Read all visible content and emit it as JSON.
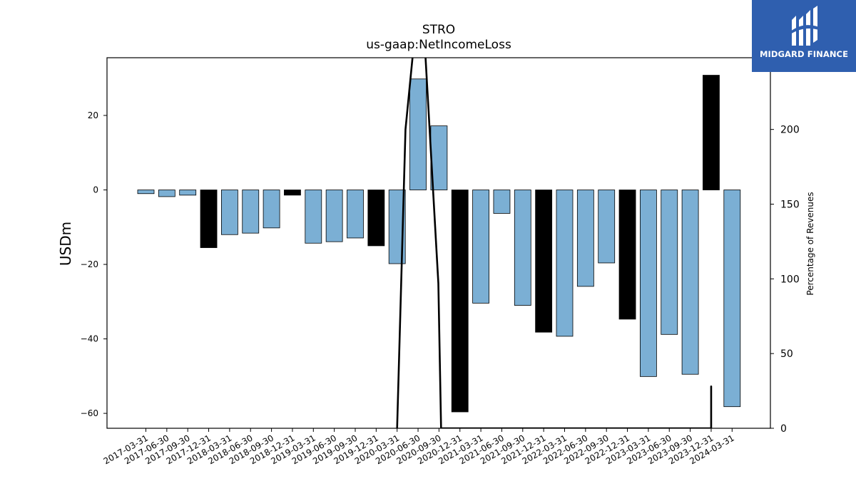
{
  "chart_data": {
    "type": "bar",
    "title": "STRO",
    "subtitle": "us-gaap:NetIncomeLoss",
    "ylabel": "USDm",
    "y2label": "Percentage of Revenues",
    "ylim": [
      -64,
      35.5
    ],
    "y2lim": [
      0,
      248
    ],
    "yticks": [
      -60,
      -40,
      -20,
      0,
      20
    ],
    "y2ticks": [
      0,
      50,
      100,
      150,
      200
    ],
    "categories": [
      "2017-03-31",
      "2017-06-30",
      "2017-09-30",
      "2017-12-31",
      "2018-03-31",
      "2018-06-30",
      "2018-09-30",
      "2018-12-31",
      "2019-03-31",
      "2019-06-30",
      "2019-09-30",
      "2019-12-31",
      "2020-03-31",
      "2020-06-30",
      "2020-09-30",
      "2020-12-31",
      "2021-03-31",
      "2021-06-30",
      "2021-09-30",
      "2021-12-31",
      "2022-03-31",
      "2022-06-30",
      "2022-09-30",
      "2022-12-31",
      "2023-03-31",
      "2023-06-30",
      "2023-09-30",
      "2023-12-31",
      "2024-03-31"
    ],
    "values": [
      -1.0,
      -1.8,
      -1.4,
      -15.5,
      -12.0,
      -11.6,
      -10.2,
      -1.4,
      -14.3,
      -13.9,
      -12.9,
      -15.0,
      -19.8,
      29.8,
      17.2,
      -59.6,
      -30.4,
      -6.3,
      -31.0,
      -38.2,
      -39.3,
      -25.9,
      -19.6,
      -34.7,
      -50.1,
      -38.8,
      -49.5,
      30.8,
      -58.2
    ],
    "quarter_type": [
      "Q",
      "Q",
      "Q",
      "FY",
      "Q",
      "Q",
      "Q",
      "FY",
      "Q",
      "Q",
      "Q",
      "FY",
      "Q",
      "Q",
      "Q",
      "FY",
      "Q",
      "Q",
      "Q",
      "FY",
      "Q",
      "Q",
      "Q",
      "FY",
      "Q",
      "Q",
      "Q",
      "FY",
      "Q"
    ],
    "colors": {
      "Q": "#7bafd4",
      "FY": "#000000",
      "line": "#000000"
    },
    "line_series": {
      "axis": "right",
      "x": [
        12,
        12.4,
        12.75,
        13.35,
        13.97,
        14.1,
        27,
        27.0,
        27.0
      ],
      "values": [
        0,
        200,
        250,
        250,
        97,
        0,
        0,
        28,
        0
      ]
    },
    "grid": false,
    "legend": "none"
  },
  "logo": {
    "text": "MIDGARD FINANCE"
  }
}
